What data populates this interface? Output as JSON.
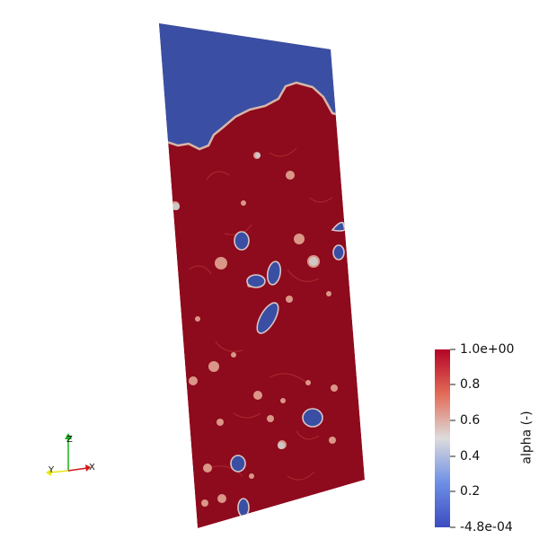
{
  "colorbar": {
    "title": "alpha (-)",
    "ticks": [
      "1.0e+00",
      "0.8",
      "0.6",
      "0.4",
      "0.2",
      "-4.8e-04"
    ],
    "min": -0.00048,
    "max": 1.0,
    "colors": {
      "top": "#b40426",
      "upper": "#e36b57",
      "mid": "#dddcdc",
      "lower": "#6d8fe6",
      "bottom": "#3b4cc0"
    }
  },
  "axes_triad": {
    "x_label": "X",
    "y_label": "Y",
    "z_label": "Z",
    "x_color": "#d11919",
    "y_color": "#e6e619",
    "z_color": "#19b219"
  },
  "field_colors": {
    "liquid": "#8e0a1d",
    "gas": "#3a4fa3",
    "interface": "#e8b09a"
  }
}
